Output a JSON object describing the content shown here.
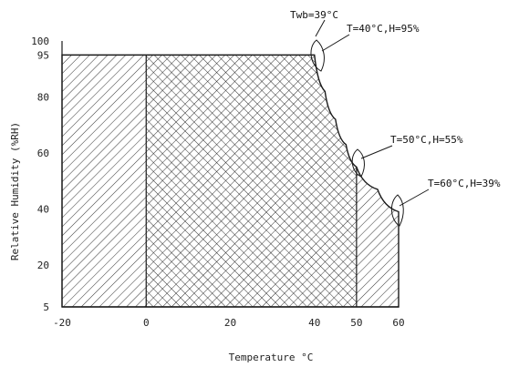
{
  "chart_data": {
    "type": "area",
    "xlabel": "Temperature °C",
    "ylabel": "Relative Humidity (%RH)",
    "xlim": [
      -20,
      60
    ],
    "ylim": [
      5,
      100
    ],
    "x_ticks": [
      -20,
      0,
      20,
      40,
      50,
      60
    ],
    "y_ticks": [
      5,
      20,
      40,
      60,
      80,
      95,
      100
    ],
    "x_tick_labels": [
      "-20",
      "0",
      "20",
      "40",
      "50",
      "60"
    ],
    "y_tick_labels": [
      "5",
      "20",
      "40",
      "60",
      "80",
      "95",
      "100"
    ],
    "grid": false,
    "legend": "none",
    "boundary_curve": [
      {
        "x": 40,
        "y": 95
      },
      {
        "x": 42.5,
        "y": 82
      },
      {
        "x": 45,
        "y": 72
      },
      {
        "x": 47.5,
        "y": 63
      },
      {
        "x": 50,
        "y": 55
      },
      {
        "x": 55,
        "y": 47
      },
      {
        "x": 60,
        "y": 39
      }
    ],
    "regions": [
      {
        "id": "left-band",
        "pattern": "single-hatch",
        "x": [
          -20,
          0
        ],
        "y": [
          5,
          95
        ]
      },
      {
        "id": "center",
        "pattern": "cross-hatch",
        "x": [
          0,
          50
        ],
        "y": [
          5,
          95
        ]
      },
      {
        "id": "right-band",
        "pattern": "single-hatch",
        "x": [
          50,
          60
        ],
        "y": [
          5,
          95
        ]
      }
    ],
    "annotations": [
      {
        "id": "twb",
        "text": "Twb=39°C",
        "x": 40,
        "y": 95
      },
      {
        "id": "p1",
        "text": "T=40°C,H=95%",
        "x": 40,
        "y": 95
      },
      {
        "id": "p2",
        "text": "T=50°C,H=55%",
        "x": 50,
        "y": 55
      },
      {
        "id": "p3",
        "text": "T=60°C,H=39%",
        "x": 60,
        "y": 39
      }
    ]
  },
  "colors": {
    "line": "#1a1a1a",
    "background": "#ffffff"
  }
}
